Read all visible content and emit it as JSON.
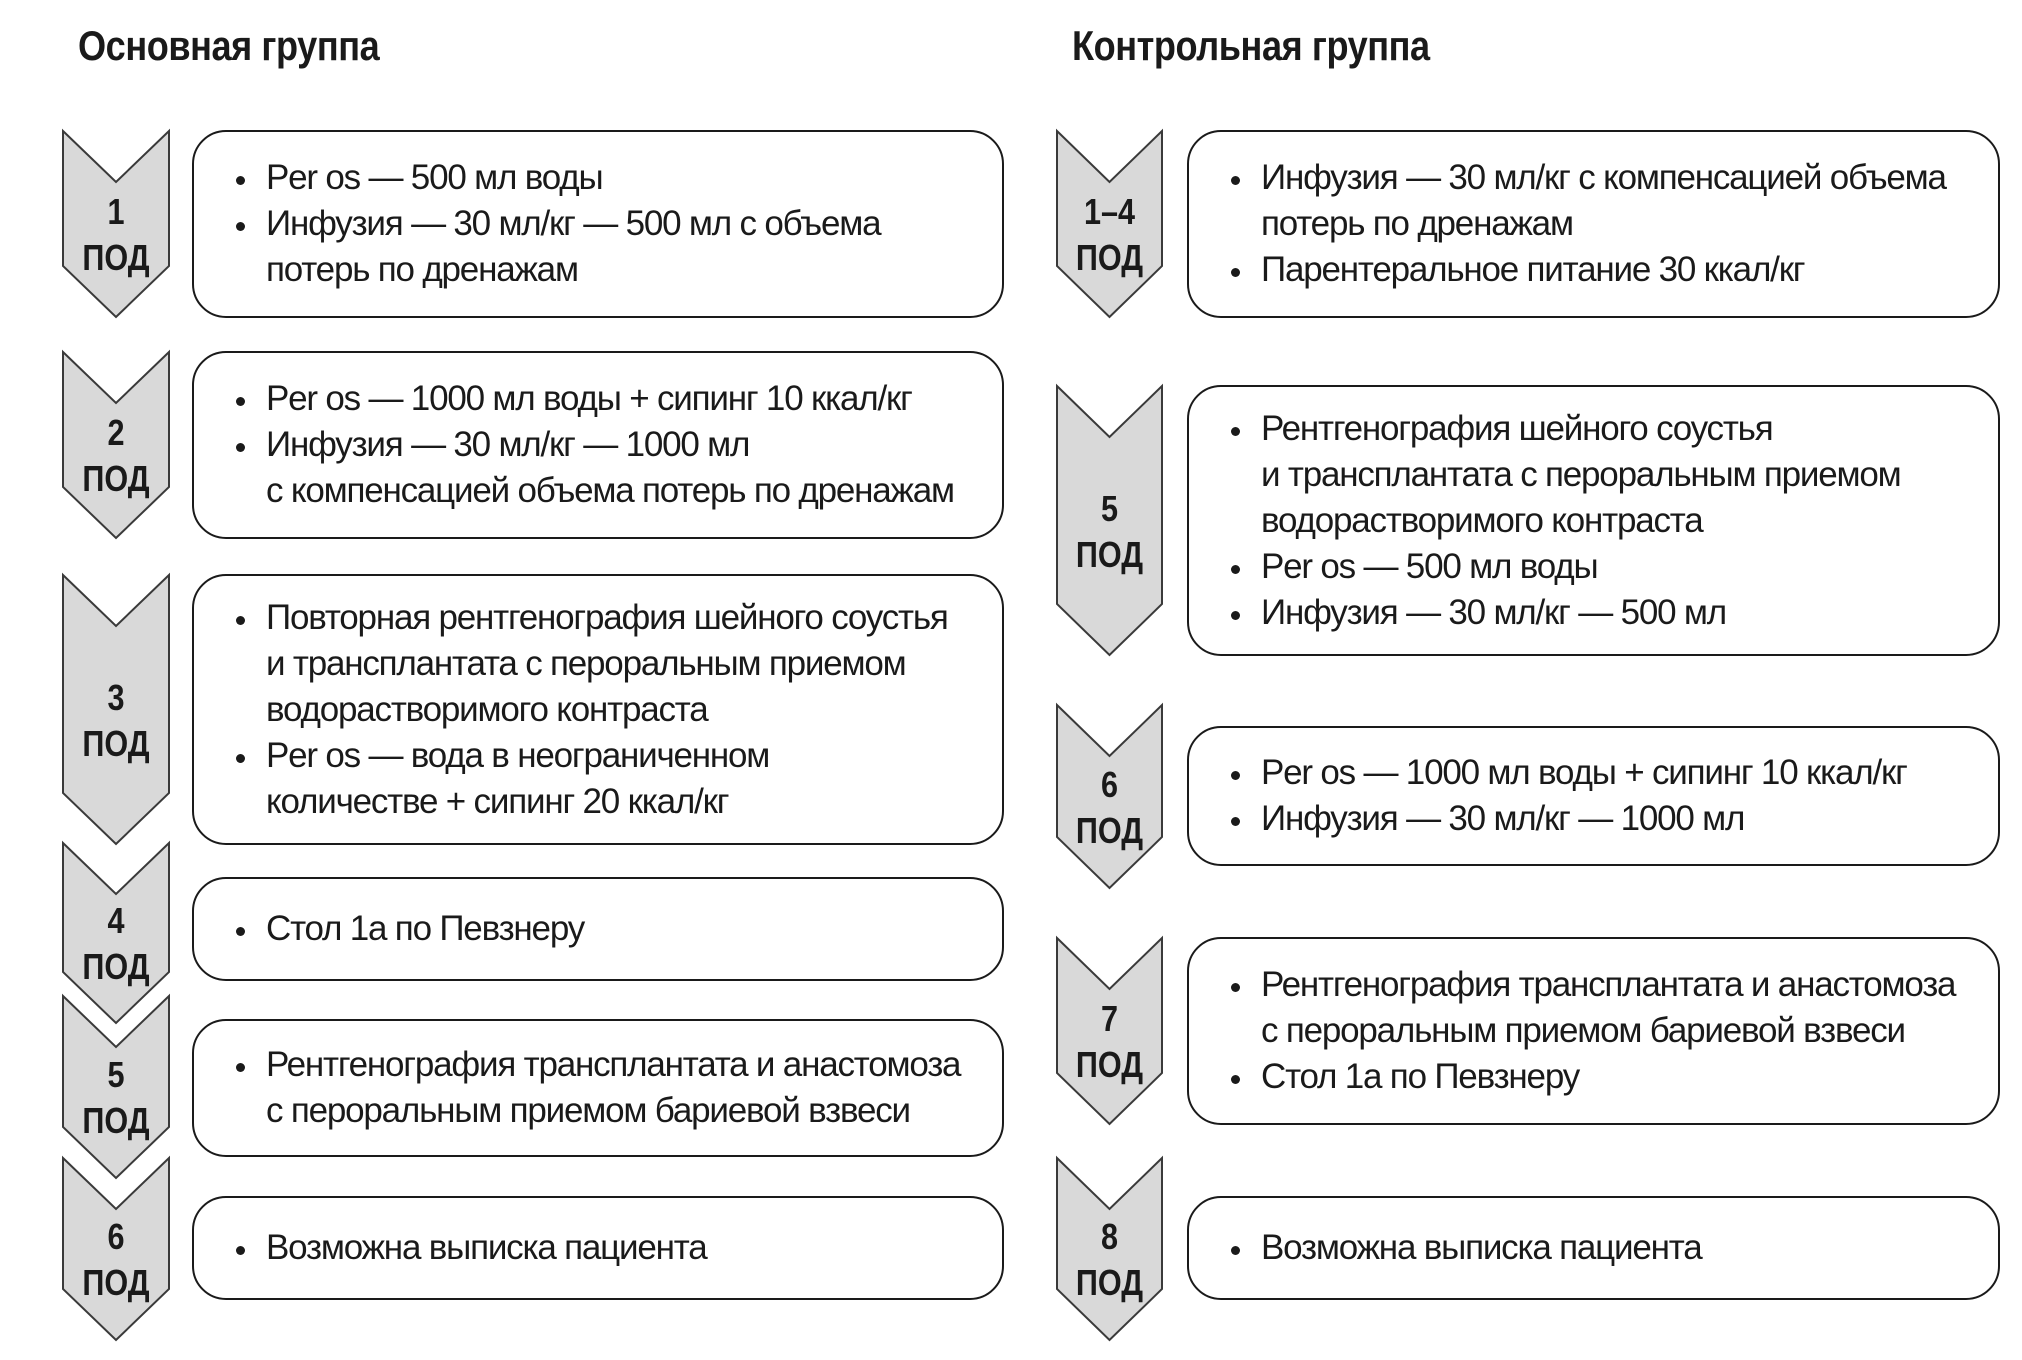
{
  "left": {
    "title": "Основная группа",
    "rows": [
      {
        "num": "1",
        "unit": "ПОД",
        "items": [
          "Per os — 500 мл воды",
          "Инфузия — 30 мл/кг — 500 мл с объема\nпотерь по дренажам"
        ]
      },
      {
        "num": "2",
        "unit": "ПОД",
        "items": [
          "Per os — 1000 мл воды + сипинг 10 ккал/кг",
          "Инфузия — 30 мл/кг — 1000 мл\nс компенсацией объема потерь по дренажам"
        ]
      },
      {
        "num": "3",
        "unit": "ПОД",
        "items": [
          "Повторная рентгенография шейного соустья\nи трансплантата с пероральным приемом\nводорастворимого контраста",
          "Per os — вода в неограниченном\nколичестве + сипинг 20 ккал/кг"
        ]
      },
      {
        "num": "4",
        "unit": "ПОД",
        "items": [
          "Стол 1а по Певзнеру"
        ]
      },
      {
        "num": "5",
        "unit": "ПОД",
        "items": [
          "Рентгенография трансплантата и анастомоза\nс пероральным приемом бариевой взвеси"
        ]
      },
      {
        "num": "6",
        "unit": "ПОД",
        "items": [
          "Возможна выписка пациента"
        ]
      }
    ]
  },
  "right": {
    "title": "Контрольная группа",
    "rows": [
      {
        "num": "1–4",
        "unit": "ПОД",
        "items": [
          "Инфузия — 30 мл/кг с компенсацией объема\nпотерь по дренажам",
          "Парентеральное питание 30 ккал/кг"
        ]
      },
      {
        "num": "5",
        "unit": "ПОД",
        "items": [
          "Рентгенография шейного соустья\nи трансплантата с пероральным приемом\nводорастворимого контраста",
          "Per os — 500 мл воды",
          "Инфузия — 30 мл/кг — 500 мл"
        ]
      },
      {
        "num": "6",
        "unit": "ПОД",
        "items": [
          "Per os — 1000 мл воды + сипинг 10 ккал/кг",
          "Инфузия — 30 мл/кг — 1000 мл"
        ]
      },
      {
        "num": "7",
        "unit": "ПОД",
        "items": [
          "Рентгенография трансплантата и анастомоза\nс пероральным приемом бариевой взвеси",
          "Стол 1а по Певзнеру"
        ]
      },
      {
        "num": "8",
        "unit": "ПОД",
        "items": [
          "Возможна выписка пациента"
        ]
      }
    ]
  },
  "colors": {
    "arrow_fill": "#d9d9d9",
    "arrow_stroke": "#3a3a3a",
    "text": "#1a1a1a"
  }
}
